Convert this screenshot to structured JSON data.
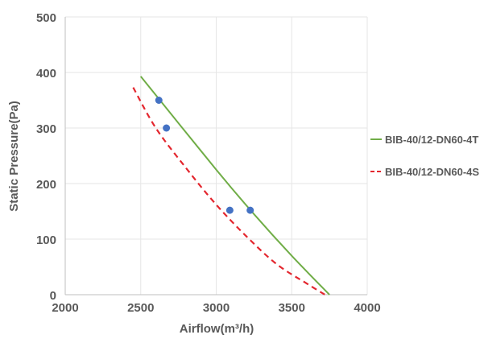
{
  "chart_data": {
    "type": "line",
    "title": "",
    "xlabel": "Airflow(m³/h)",
    "ylabel": "Static Pressure(Pa)",
    "xlim": [
      2000,
      4000
    ],
    "ylim": [
      0,
      500
    ],
    "x_ticks": [
      2000,
      2500,
      3000,
      3500,
      4000
    ],
    "y_ticks": [
      0,
      100,
      200,
      300,
      400,
      500
    ],
    "grid": true,
    "legend_position": "right",
    "series": [
      {
        "name": "BIB-40/12-DN60-4T",
        "style": "solid",
        "color": "#70ad47",
        "x": [
          2500,
          3000,
          3250,
          3500,
          3750
        ],
        "y": [
          393,
          225,
          145,
          70,
          0
        ]
      },
      {
        "name": "BIB-40/12-DN60-4S",
        "style": "dashed",
        "color": "#e3262e",
        "x": [
          2450,
          2600,
          2800,
          3000,
          3200,
          3400,
          3600,
          3720
        ],
        "y": [
          373,
          300,
          228,
          162,
          105,
          55,
          20,
          0
        ]
      }
    ],
    "points": [
      {
        "x": 2620,
        "y": 350
      },
      {
        "x": 2670,
        "y": 300
      },
      {
        "x": 3090,
        "y": 152
      },
      {
        "x": 3225,
        "y": 152
      }
    ],
    "point_color": "#4472c4"
  }
}
